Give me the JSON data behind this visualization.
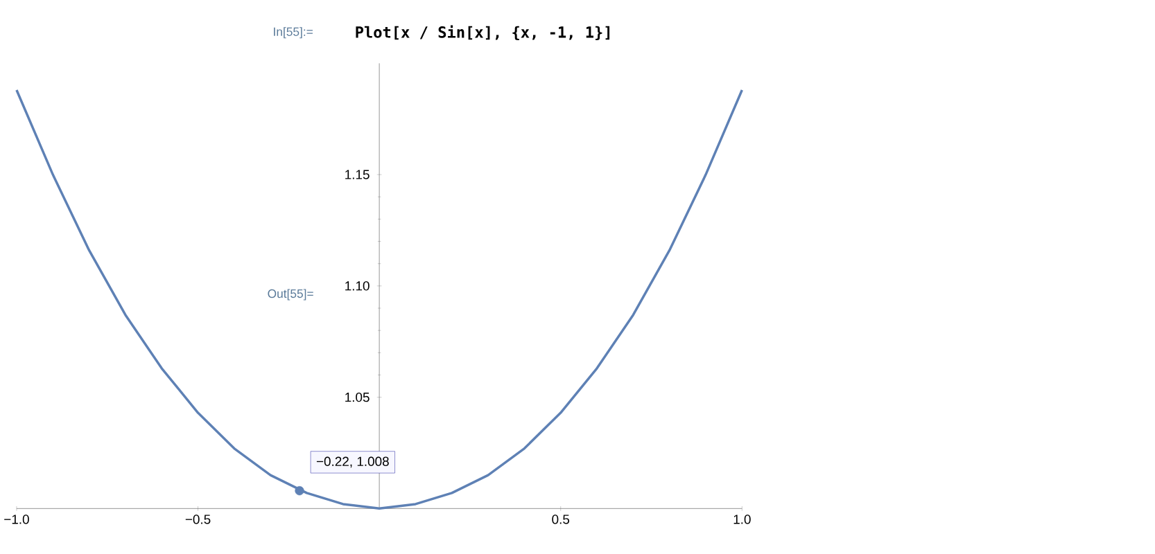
{
  "chart_data": {
    "type": "line",
    "title": "Plot[x / Sin[x], {x, -1, 1}]",
    "x": [
      -1,
      -0.9,
      -0.8,
      -0.7,
      -0.6,
      -0.5,
      -0.4,
      -0.3,
      -0.2,
      -0.1,
      0,
      0.1,
      0.2,
      0.3,
      0.4,
      0.5,
      0.6,
      0.7,
      0.8,
      0.9,
      1
    ],
    "series": [
      {
        "color": "#5e81b5",
        "values": [
          1.188,
          1.15,
          1.116,
          1.087,
          1.063,
          1.043,
          1.027,
          1.015,
          1.007,
          1.002,
          1.0,
          1.002,
          1.007,
          1.015,
          1.027,
          1.043,
          1.063,
          1.087,
          1.116,
          1.15,
          1.188
        ]
      }
    ],
    "xlim": [
      -1,
      1
    ],
    "ylim": [
      1,
      1.2
    ],
    "xticks": [
      {
        "value": -1,
        "label": "−1.0"
      },
      {
        "value": -0.5,
        "label": "−0.5"
      },
      {
        "value": 0.5,
        "label": "0.5"
      },
      {
        "value": 1,
        "label": "1.0"
      }
    ],
    "yticks": [
      {
        "value": 1.05,
        "label": "1.05"
      },
      {
        "value": 1.1,
        "label": "1.10"
      },
      {
        "value": 1.15,
        "label": "1.15"
      }
    ],
    "grid": false,
    "marker": "none",
    "line_style": "solid",
    "annotations": [
      "In[55]:=",
      "Out[55]=",
      {
        "text": "−0.22, 1.008",
        "x": -0.22,
        "y": 1.008
      }
    ]
  }
}
